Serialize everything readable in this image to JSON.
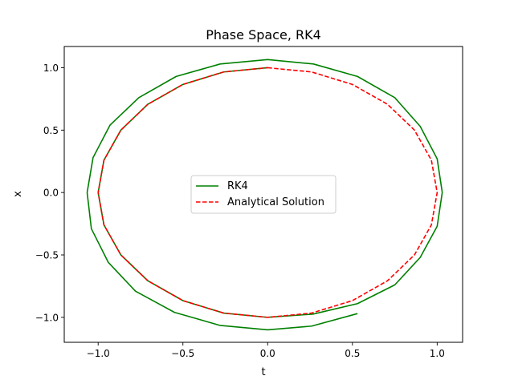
{
  "chart_data": {
    "type": "line",
    "title": "Phase Space, RK4",
    "xlabel": "t",
    "ylabel": "x",
    "xlim": [
      -1.2,
      1.15
    ],
    "ylim": [
      -1.2,
      1.17
    ],
    "xticks": [
      -1.0,
      -0.5,
      0.0,
      0.5,
      1.0
    ],
    "xtick_labels": [
      "−1.0",
      "−0.5",
      "0.0",
      "0.5",
      "1.0"
    ],
    "yticks": [
      -1.0,
      -0.5,
      0.0,
      0.5,
      1.0
    ],
    "ytick_labels": [
      "−1.0",
      "−0.5",
      "0.0",
      "0.5",
      "1.0"
    ],
    "grid": false,
    "legend_position": "center",
    "series": [
      {
        "name": "RK4",
        "color": "#008000",
        "style": "solid",
        "points": [
          [
            0.0,
            1.0
          ],
          [
            -0.259,
            0.966
          ],
          [
            -0.5,
            0.866
          ],
          [
            -0.707,
            0.707
          ],
          [
            -0.866,
            0.5
          ],
          [
            -0.966,
            0.259
          ],
          [
            -1.0,
            0.0
          ],
          [
            -0.966,
            -0.259
          ],
          [
            -0.866,
            -0.5
          ],
          [
            -0.707,
            -0.707
          ],
          [
            -0.5,
            -0.866
          ],
          [
            -0.259,
            -0.966
          ],
          [
            0.0,
            -1.0
          ],
          [
            0.268,
            -0.974
          ],
          [
            0.53,
            -0.89
          ],
          [
            0.75,
            -0.74
          ],
          [
            0.9,
            -0.52
          ],
          [
            1.0,
            -0.27
          ],
          [
            1.03,
            0.0
          ],
          [
            1.0,
            0.27
          ],
          [
            0.9,
            0.53
          ],
          [
            0.75,
            0.76
          ],
          [
            0.53,
            0.93
          ],
          [
            0.27,
            1.03
          ],
          [
            0.0,
            1.065
          ],
          [
            -0.28,
            1.03
          ],
          [
            -0.54,
            0.93
          ],
          [
            -0.76,
            0.76
          ],
          [
            -0.93,
            0.54
          ],
          [
            -1.03,
            0.28
          ],
          [
            -1.065,
            0.0
          ],
          [
            -1.04,
            -0.29
          ],
          [
            -0.94,
            -0.56
          ],
          [
            -0.78,
            -0.79
          ],
          [
            -0.55,
            -0.96
          ],
          [
            -0.28,
            -1.065
          ],
          [
            0.0,
            -1.1
          ],
          [
            0.26,
            -1.07
          ],
          [
            0.53,
            -0.97
          ]
        ]
      },
      {
        "name": "Analytical Solution",
        "color": "#ff0000",
        "style": "dashed",
        "points": [
          [
            0.0,
            1.0
          ],
          [
            0.259,
            0.966
          ],
          [
            0.5,
            0.866
          ],
          [
            0.707,
            0.707
          ],
          [
            0.866,
            0.5
          ],
          [
            0.966,
            0.259
          ],
          [
            1.0,
            0.0
          ],
          [
            0.966,
            -0.259
          ],
          [
            0.866,
            -0.5
          ],
          [
            0.707,
            -0.707
          ],
          [
            0.5,
            -0.866
          ],
          [
            0.259,
            -0.966
          ],
          [
            0.0,
            -1.0
          ],
          [
            -0.259,
            -0.966
          ],
          [
            -0.5,
            -0.866
          ],
          [
            -0.707,
            -0.707
          ],
          [
            -0.866,
            -0.5
          ],
          [
            -0.966,
            -0.259
          ],
          [
            -1.0,
            0.0
          ],
          [
            -0.966,
            0.259
          ],
          [
            -0.866,
            0.5
          ],
          [
            -0.707,
            0.707
          ],
          [
            -0.5,
            0.866
          ],
          [
            -0.259,
            0.966
          ],
          [
            0.0,
            1.0
          ]
        ]
      }
    ]
  }
}
